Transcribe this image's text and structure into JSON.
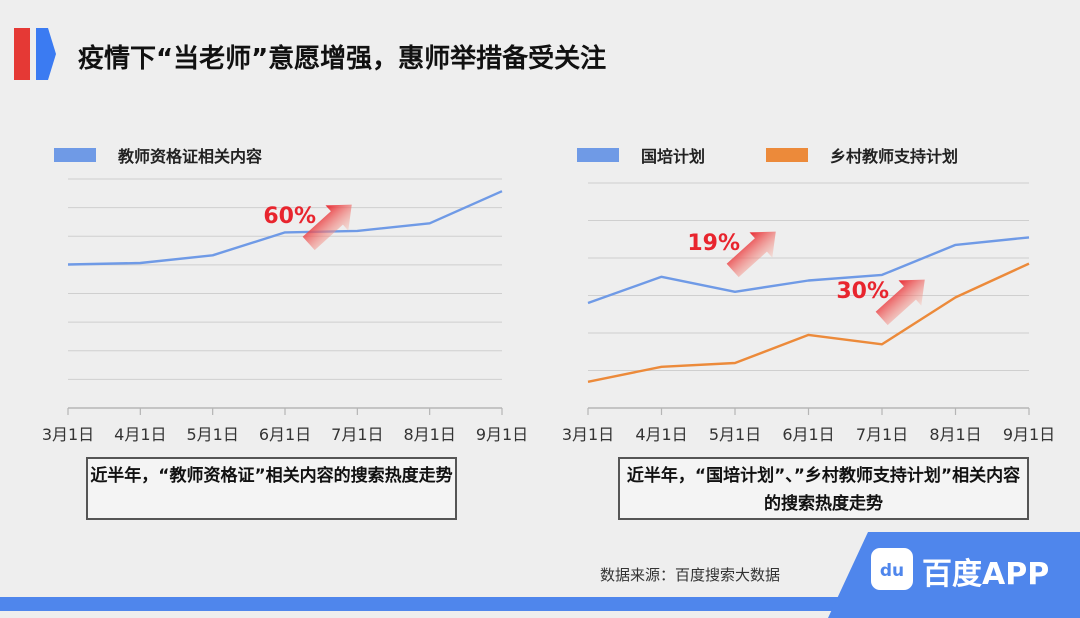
{
  "title": "疫情下“当老师”意愿增强，惠师举措备受关注",
  "colors": {
    "blue": "#6f9ae6",
    "orange": "#ec8a3a",
    "arrow": "#e8252e",
    "grid": "#cfcfcf"
  },
  "chart_data": [
    {
      "type": "line",
      "categories": [
        "3月1日",
        "4月1日",
        "5月1日",
        "6月1日",
        "7月1日",
        "8月1日",
        "9月1日"
      ],
      "series": [
        {
          "name": "教师资格证相关内容",
          "color": "#6f9ae6",
          "values": [
            44,
            45,
            50,
            65,
            66,
            71,
            92
          ]
        }
      ],
      "ylim": [
        -50,
        100
      ],
      "grid": true,
      "annotations": [
        {
          "text": "60%"
        }
      ],
      "caption": "近半年，“教师资格证”相关内容的搜索热度走势"
    },
    {
      "type": "line",
      "categories": [
        "3月1日",
        "4月1日",
        "5月1日",
        "6月1日",
        "7月1日",
        "8月1日",
        "9月1日"
      ],
      "series": [
        {
          "name": "国培计划",
          "color": "#6f9ae6",
          "values": [
            56,
            70,
            62,
            68,
            71,
            87,
            91
          ]
        },
        {
          "name": "乡村教师支持计划",
          "color": "#ec8a3a",
          "values": [
            14,
            22,
            24,
            39,
            34,
            59,
            77
          ]
        }
      ],
      "ylim": [
        0,
        120
      ],
      "grid": true,
      "annotations": [
        {
          "text": "19%"
        },
        {
          "text": "30%"
        }
      ],
      "caption": "近半年，“国培计划”、”乡村教师支持计划”相关内容的搜索热度走势"
    }
  ],
  "footer": {
    "source": "数据来源：百度搜索大数据",
    "brand": "百度APP",
    "logo_text": "du"
  }
}
